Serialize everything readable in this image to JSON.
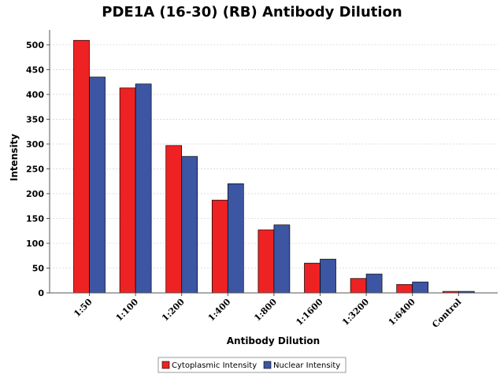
{
  "chart_data": {
    "type": "bar",
    "title": "PDE1A (16-30) (RB) Antibody Dilution",
    "xlabel": "Antibody Dilution",
    "ylabel": "Intensity",
    "categories": [
      "1:50",
      "1:100",
      "1:200",
      "1:400",
      "1:800",
      "1:1600",
      "1:3200",
      "1:6400",
      "Control"
    ],
    "series": [
      {
        "name": "Cytoplasmic Intensity",
        "color": "#ee2222",
        "values": [
          509,
          413,
          297,
          187,
          127,
          60,
          29,
          17,
          3
        ]
      },
      {
        "name": "Nuclear Intensity",
        "color": "#3c56a4",
        "values": [
          435,
          421,
          275,
          220,
          137,
          68,
          38,
          22,
          3
        ]
      }
    ],
    "ylim": [
      0,
      530
    ],
    "yticks": [
      0,
      50,
      100,
      150,
      200,
      250,
      300,
      350,
      400,
      450,
      500
    ],
    "grid": true,
    "legend": "bottom-center"
  }
}
